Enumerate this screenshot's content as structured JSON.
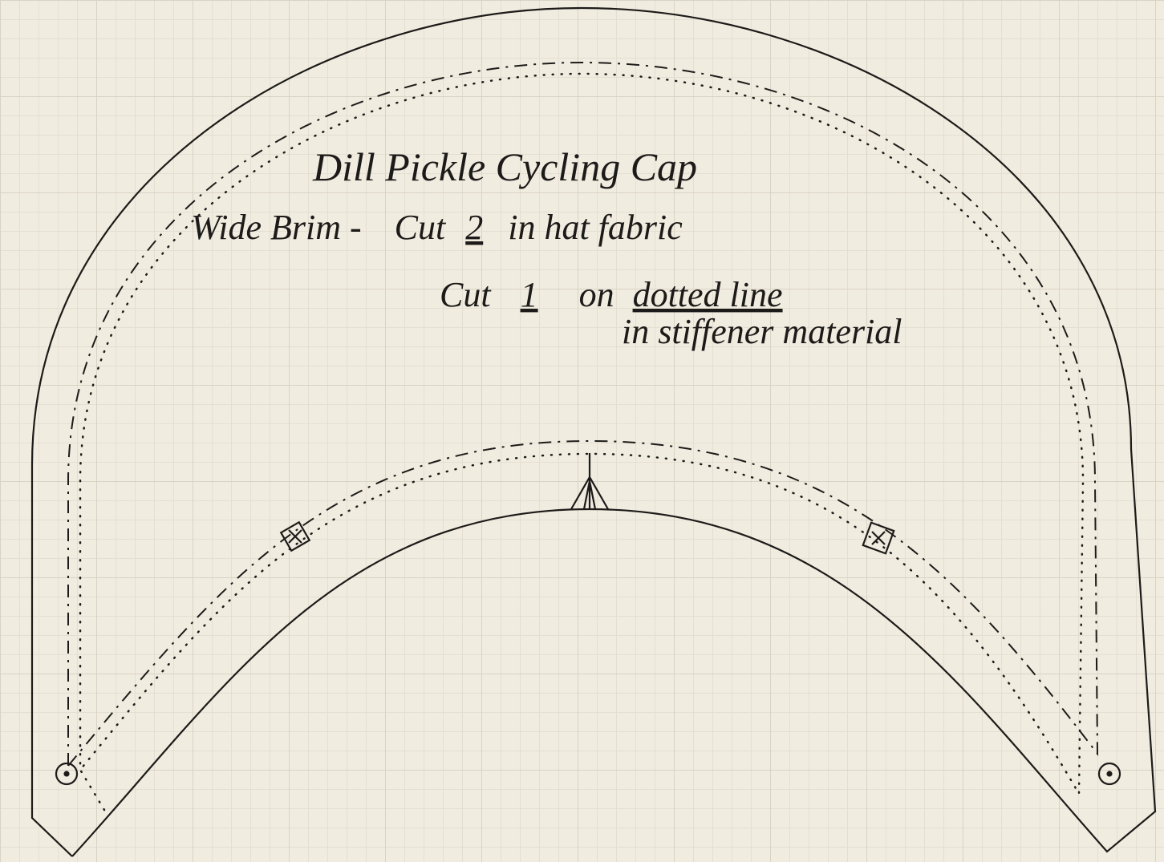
{
  "title": "Dill Pickle Cycling Cap",
  "line1": [
    "Wide Brim -",
    "Cut",
    "2",
    "in hat fabric"
  ],
  "line2": [
    "Cut",
    "1",
    "on",
    "dotted line"
  ],
  "line3": "in stiffener material"
}
